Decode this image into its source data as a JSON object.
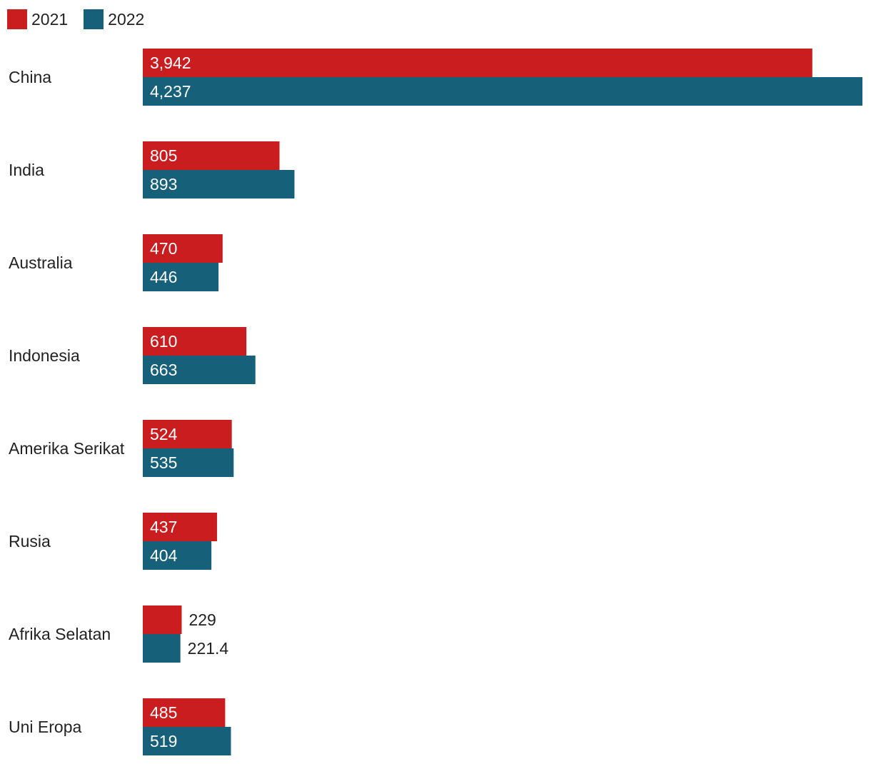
{
  "chart_data": {
    "type": "bar",
    "orientation": "horizontal",
    "legend_position": "top-left",
    "grid": false,
    "xlim": [
      0,
      4237
    ],
    "categories": [
      "China",
      "India",
      "Australia",
      "Indonesia",
      "Amerika Serikat",
      "Rusia",
      "Afrika Selatan",
      "Uni Eropa"
    ],
    "series": [
      {
        "name": "2021",
        "color": "#c91d20",
        "values": [
          3942,
          805,
          470,
          610,
          524,
          437,
          229,
          485
        ],
        "labels": [
          "3,942",
          "805",
          "470",
          "610",
          "524",
          "437",
          "229",
          "485"
        ]
      },
      {
        "name": "2022",
        "color": "#17607a",
        "values": [
          4237,
          893,
          446,
          663,
          535,
          404,
          221.4,
          519
        ],
        "labels": [
          "4,237",
          "893",
          "446",
          "663",
          "535",
          "404",
          "221.4",
          "519"
        ]
      }
    ]
  }
}
